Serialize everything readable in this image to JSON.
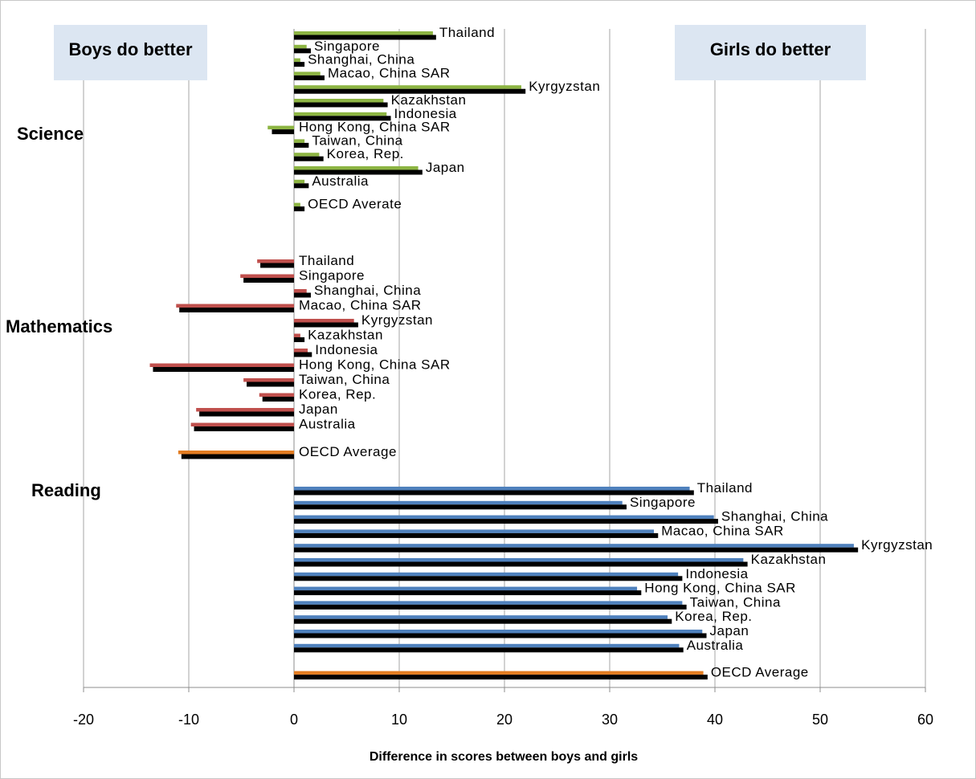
{
  "chart_data": {
    "type": "bar",
    "orientation": "horizontal",
    "xlabel": "Difference in scores between boys and girls",
    "xlim": [
      -20,
      60
    ],
    "xticks": [
      -20,
      -10,
      0,
      10,
      20,
      30,
      40,
      50,
      60
    ],
    "grid": "vertical",
    "callouts": {
      "left": "Boys do better",
      "right": "Girls do better"
    },
    "colors": {
      "science": "#8db543",
      "mathematics": "#c0504d",
      "reading": "#4f81bd",
      "oecd_average": "#e37d22",
      "pair": "#000000"
    },
    "groups": [
      {
        "name": "Science",
        "color": "#8db543",
        "bars": [
          {
            "label": "Thailand",
            "colored": 13.2,
            "black": 13.5
          },
          {
            "label": "Singapore",
            "colored": 1.2,
            "black": 1.6
          },
          {
            "label": "Shanghai, China",
            "colored": 0.6,
            "black": 1.0
          },
          {
            "label": "Macao, China SAR",
            "colored": 2.5,
            "black": 2.9
          },
          {
            "label": "Kyrgyzstan",
            "colored": 21.6,
            "black": 22.0
          },
          {
            "label": "Kazakhstan",
            "colored": 8.5,
            "black": 8.9
          },
          {
            "label": "Indonesia",
            "colored": 8.8,
            "black": 9.2
          },
          {
            "label": "Hong Kong, China SAR",
            "colored": -2.5,
            "black": -2.1
          },
          {
            "label": "Taiwan, China",
            "colored": 1.0,
            "black": 1.4
          },
          {
            "label": "Korea, Rep.",
            "colored": 2.4,
            "black": 2.8
          },
          {
            "label": "Japan",
            "colored": 11.8,
            "black": 12.2
          },
          {
            "label": "Australia",
            "colored": 1.0,
            "black": 1.4
          },
          {
            "label": "OECD Averate",
            "colored": 0.6,
            "black": 1.0
          }
        ]
      },
      {
        "name": "Mathematics",
        "color": "#c0504d",
        "bars": [
          {
            "label": "Thailand",
            "colored": -3.5,
            "black": -3.2
          },
          {
            "label": "Singapore",
            "colored": -5.1,
            "black": -4.8
          },
          {
            "label": "Shanghai, China",
            "colored": 1.2,
            "black": 1.6
          },
          {
            "label": "Macao, China SAR",
            "colored": -11.2,
            "black": -10.9
          },
          {
            "label": "Kyrgyzstan",
            "colored": 5.7,
            "black": 6.1
          },
          {
            "label": "Kazakhstan",
            "colored": 0.6,
            "black": 1.0
          },
          {
            "label": "Indonesia",
            "colored": 1.3,
            "black": 1.7
          },
          {
            "label": "Hong Kong, China SAR",
            "colored": -13.7,
            "black": -13.4
          },
          {
            "label": "Taiwan, China",
            "colored": -4.8,
            "black": -4.5
          },
          {
            "label": "Korea, Rep.",
            "colored": -3.3,
            "black": -3.0
          },
          {
            "label": "Japan",
            "colored": -9.3,
            "black": -9.0
          },
          {
            "label": "Australia",
            "colored": -9.8,
            "black": -9.5
          },
          {
            "label": "OECD Average",
            "colored": -11.0,
            "black": -10.7,
            "color": "#e37d22"
          }
        ]
      },
      {
        "name": "Reading",
        "color": "#4f81bd",
        "bars": [
          {
            "label": "Thailand",
            "colored": 37.6,
            "black": 38.0
          },
          {
            "label": "Singapore",
            "colored": 31.2,
            "black": 31.6
          },
          {
            "label": "Shanghai, China",
            "colored": 39.9,
            "black": 40.3
          },
          {
            "label": "Macao, China SAR",
            "colored": 34.2,
            "black": 34.6
          },
          {
            "label": "Kyrgyzstan",
            "colored": 53.2,
            "black": 53.6
          },
          {
            "label": "Kazakhstan",
            "colored": 42.7,
            "black": 43.1
          },
          {
            "label": "Indonesia",
            "colored": 36.5,
            "black": 36.9
          },
          {
            "label": "Hong Kong, China SAR",
            "colored": 32.6,
            "black": 33.0
          },
          {
            "label": "Taiwan, China",
            "colored": 36.9,
            "black": 37.3
          },
          {
            "label": "Korea, Rep.",
            "colored": 35.5,
            "black": 35.9
          },
          {
            "label": "Japan",
            "colored": 38.8,
            "black": 39.2
          },
          {
            "label": "Australia",
            "colored": 36.6,
            "black": 37.0
          },
          {
            "label": "OECD Average",
            "colored": 38.9,
            "black": 39.3,
            "color": "#e37d22"
          }
        ]
      }
    ]
  }
}
